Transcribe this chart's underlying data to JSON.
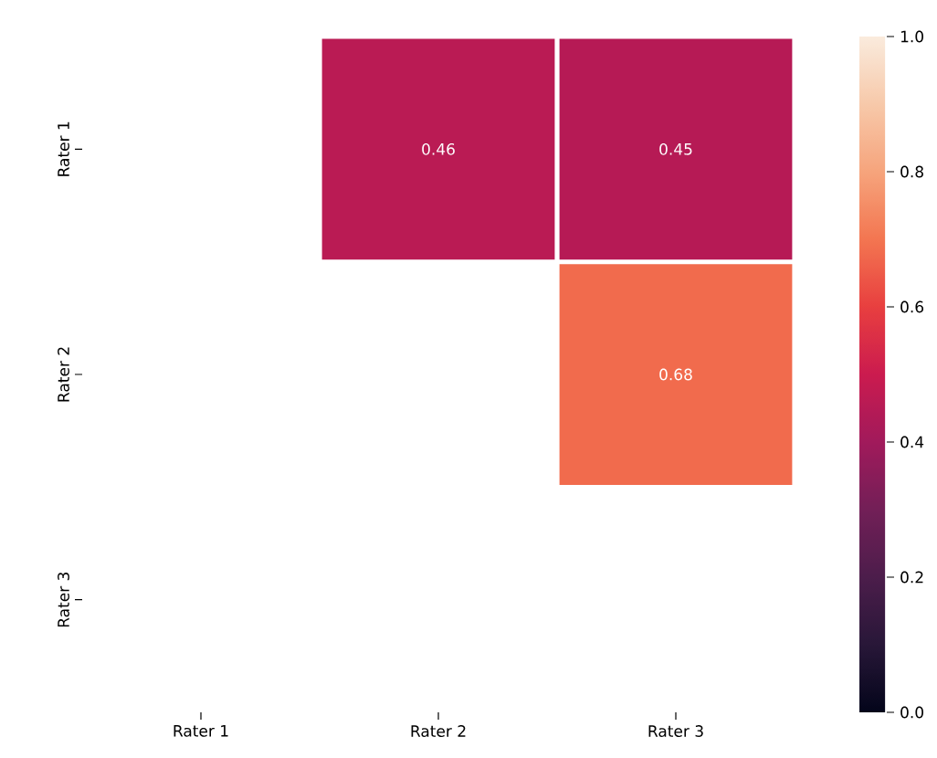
{
  "chart_data": {
    "type": "heatmap",
    "categories": [
      "Rater 1",
      "Rater 2",
      "Rater 3"
    ],
    "y_categories": [
      "Rater 1",
      "Rater 2",
      "Rater 3"
    ],
    "cells": [
      [
        null,
        0.46,
        0.45
      ],
      [
        null,
        null,
        0.68
      ],
      [
        null,
        null,
        null
      ]
    ],
    "clim": [
      0.0,
      1.0
    ],
    "cticks": [
      {
        "value": 0.0,
        "label": "0.0"
      },
      {
        "value": 0.2,
        "label": "0.2"
      },
      {
        "value": 0.4,
        "label": "0.4"
      },
      {
        "value": 0.6,
        "label": "0.6"
      },
      {
        "value": 0.8,
        "label": "0.8"
      },
      {
        "value": 1.0,
        "label": "1.0"
      }
    ],
    "data_labels": true
  }
}
